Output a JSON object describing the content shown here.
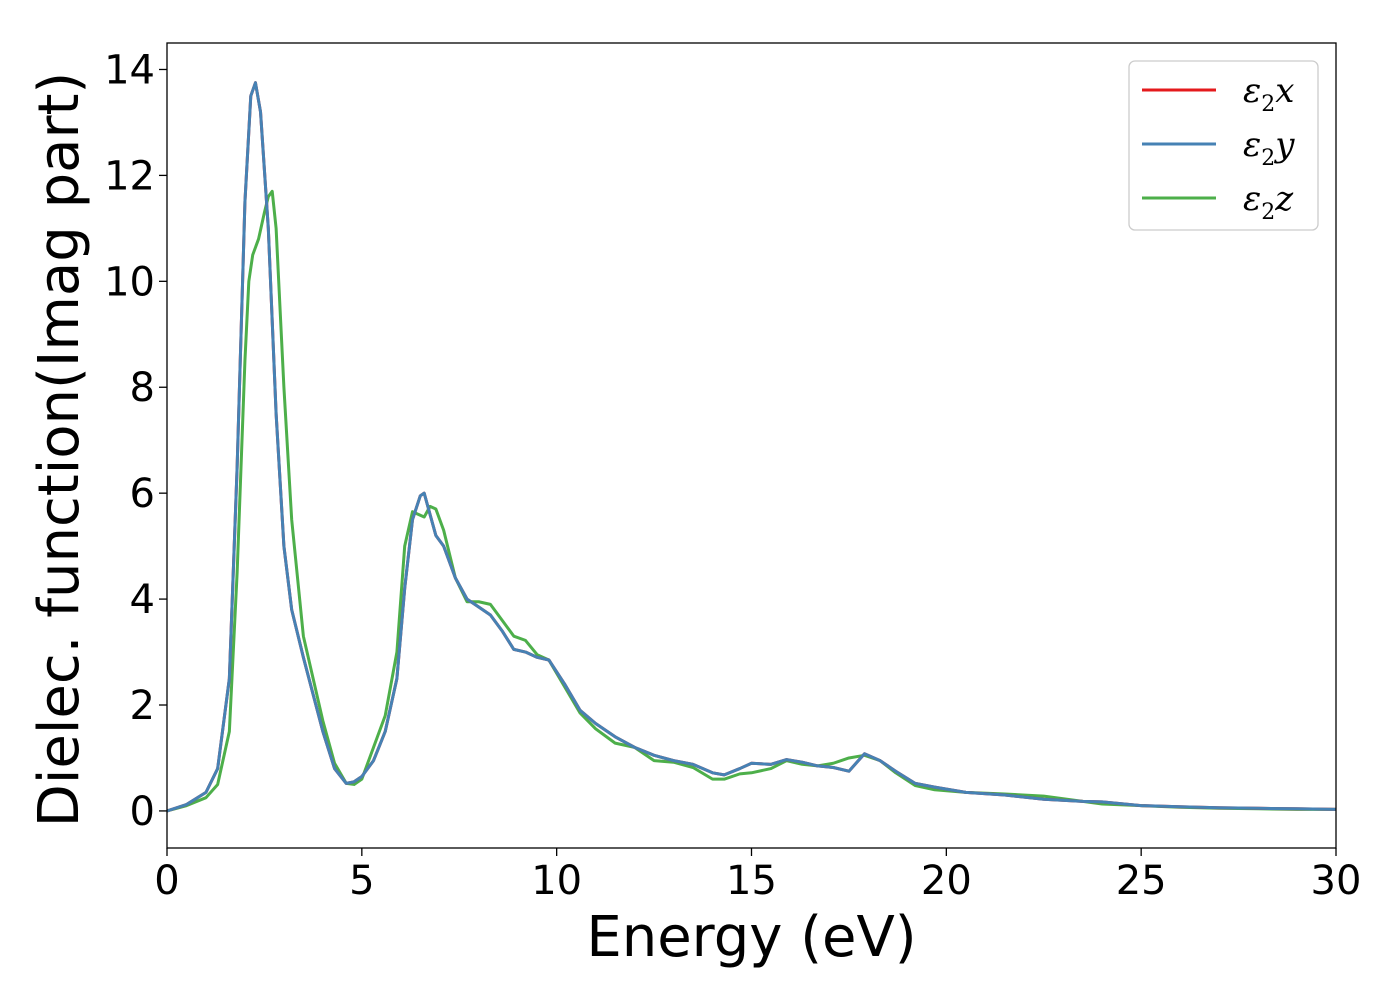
{
  "chart_data": {
    "type": "line",
    "xlabel": "Energy (eV)",
    "ylabel": "Dielec. function(Imag part)",
    "xlim": [
      0,
      30
    ],
    "ylim": [
      -0.7,
      14.5
    ],
    "x_ticks": [
      0,
      5,
      10,
      15,
      20,
      25,
      30
    ],
    "y_ticks": [
      0,
      2,
      4,
      6,
      8,
      10,
      12,
      14
    ],
    "grid": false,
    "legend_position": "top-right",
    "series": [
      {
        "name": "ε2x",
        "label_base": "ε",
        "label_sub": "2",
        "label_var": "x",
        "color": "#e41a1c",
        "x": [
          0,
          0.5,
          1.0,
          1.3,
          1.6,
          1.8,
          2.0,
          2.15,
          2.27,
          2.4,
          2.6,
          2.8,
          3.0,
          3.2,
          3.5,
          4.0,
          4.3,
          4.6,
          4.8,
          5.0,
          5.3,
          5.6,
          5.9,
          6.1,
          6.3,
          6.5,
          6.6,
          6.75,
          6.9,
          7.1,
          7.4,
          7.7,
          8.0,
          8.3,
          8.6,
          8.9,
          9.2,
          9.5,
          9.8,
          10.2,
          10.6,
          11.0,
          11.5,
          12.0,
          12.5,
          13.0,
          13.5,
          14.0,
          14.3,
          14.7,
          15.0,
          15.5,
          15.9,
          16.3,
          16.7,
          17.1,
          17.5,
          17.9,
          18.3,
          18.7,
          19.2,
          19.7,
          20.5,
          21.5,
          22.5,
          23.5,
          24.0,
          25.0,
          26.0,
          27.0,
          28.0,
          29.0,
          30.0
        ],
        "values": [
          0,
          0.12,
          0.35,
          0.8,
          2.5,
          6.5,
          11.5,
          13.5,
          13.75,
          13.2,
          11.0,
          7.5,
          5.0,
          3.8,
          2.9,
          1.5,
          0.8,
          0.52,
          0.55,
          0.65,
          0.95,
          1.5,
          2.5,
          4.2,
          5.5,
          5.95,
          6.0,
          5.6,
          5.2,
          5.0,
          4.4,
          4.0,
          3.85,
          3.7,
          3.4,
          3.05,
          3.0,
          2.9,
          2.85,
          2.4,
          1.9,
          1.65,
          1.4,
          1.2,
          1.05,
          0.95,
          0.88,
          0.72,
          0.68,
          0.8,
          0.9,
          0.88,
          0.97,
          0.92,
          0.85,
          0.82,
          0.75,
          1.08,
          0.95,
          0.75,
          0.52,
          0.45,
          0.35,
          0.3,
          0.22,
          0.18,
          0.17,
          0.1,
          0.08,
          0.06,
          0.05,
          0.04,
          0.03
        ]
      },
      {
        "name": "ε2y",
        "label_base": "ε",
        "label_sub": "2",
        "label_var": "y",
        "color": "#4682b4",
        "x": [
          0,
          0.5,
          1.0,
          1.3,
          1.6,
          1.8,
          2.0,
          2.15,
          2.27,
          2.4,
          2.6,
          2.8,
          3.0,
          3.2,
          3.5,
          4.0,
          4.3,
          4.6,
          4.8,
          5.0,
          5.3,
          5.6,
          5.9,
          6.1,
          6.3,
          6.5,
          6.6,
          6.75,
          6.9,
          7.1,
          7.4,
          7.7,
          8.0,
          8.3,
          8.6,
          8.9,
          9.2,
          9.5,
          9.8,
          10.2,
          10.6,
          11.0,
          11.5,
          12.0,
          12.5,
          13.0,
          13.5,
          14.0,
          14.3,
          14.7,
          15.0,
          15.5,
          15.9,
          16.3,
          16.7,
          17.1,
          17.5,
          17.9,
          18.3,
          18.7,
          19.2,
          19.7,
          20.5,
          21.5,
          22.5,
          23.5,
          24.0,
          25.0,
          26.0,
          27.0,
          28.0,
          29.0,
          30.0
        ],
        "values": [
          0,
          0.12,
          0.35,
          0.8,
          2.5,
          6.5,
          11.5,
          13.5,
          13.75,
          13.2,
          11.0,
          7.5,
          5.0,
          3.8,
          2.9,
          1.5,
          0.8,
          0.52,
          0.55,
          0.65,
          0.95,
          1.5,
          2.5,
          4.2,
          5.5,
          5.95,
          6.0,
          5.6,
          5.2,
          5.0,
          4.4,
          4.0,
          3.85,
          3.7,
          3.4,
          3.05,
          3.0,
          2.9,
          2.85,
          2.4,
          1.9,
          1.65,
          1.4,
          1.2,
          1.05,
          0.95,
          0.88,
          0.72,
          0.68,
          0.8,
          0.9,
          0.88,
          0.97,
          0.92,
          0.85,
          0.82,
          0.75,
          1.08,
          0.95,
          0.75,
          0.52,
          0.45,
          0.35,
          0.3,
          0.22,
          0.18,
          0.17,
          0.1,
          0.08,
          0.06,
          0.05,
          0.04,
          0.03
        ]
      },
      {
        "name": "ε2z",
        "label_base": "ε",
        "label_sub": "2",
        "label_var": "z",
        "color": "#4daf4a",
        "x": [
          0,
          0.5,
          1.0,
          1.3,
          1.6,
          1.8,
          2.0,
          2.1,
          2.2,
          2.35,
          2.5,
          2.6,
          2.7,
          2.8,
          3.0,
          3.2,
          3.5,
          4.0,
          4.3,
          4.6,
          4.8,
          5.0,
          5.3,
          5.6,
          5.9,
          6.1,
          6.3,
          6.45,
          6.6,
          6.75,
          6.9,
          7.1,
          7.4,
          7.7,
          8.0,
          8.3,
          8.6,
          8.9,
          9.2,
          9.5,
          9.8,
          10.2,
          10.6,
          11.0,
          11.5,
          12.0,
          12.5,
          13.0,
          13.5,
          14.0,
          14.3,
          14.7,
          15.0,
          15.5,
          15.9,
          16.3,
          16.7,
          17.1,
          17.5,
          17.9,
          18.3,
          18.7,
          19.2,
          19.7,
          20.5,
          21.5,
          22.5,
          23.5,
          24.0,
          25.0,
          26.0,
          27.0,
          28.0,
          29.0,
          30.0
        ],
        "values": [
          0,
          0.1,
          0.25,
          0.5,
          1.5,
          4.5,
          8.5,
          10.0,
          10.5,
          10.8,
          11.3,
          11.6,
          11.7,
          11.0,
          8.0,
          5.5,
          3.3,
          1.7,
          0.9,
          0.52,
          0.5,
          0.6,
          1.2,
          1.8,
          3.0,
          5.0,
          5.65,
          5.6,
          5.55,
          5.75,
          5.7,
          5.3,
          4.4,
          3.95,
          3.95,
          3.9,
          3.6,
          3.3,
          3.22,
          2.95,
          2.85,
          2.35,
          1.85,
          1.55,
          1.28,
          1.2,
          0.95,
          0.92,
          0.82,
          0.6,
          0.6,
          0.7,
          0.72,
          0.8,
          0.95,
          0.88,
          0.85,
          0.9,
          1.0,
          1.05,
          0.95,
          0.72,
          0.48,
          0.4,
          0.35,
          0.32,
          0.28,
          0.18,
          0.13,
          0.1,
          0.07,
          0.05,
          0.04,
          0.03,
          0.03
        ]
      }
    ]
  }
}
